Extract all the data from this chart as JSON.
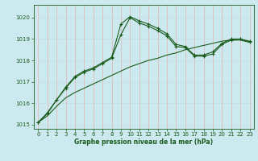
{
  "title": "Graphe pression niveau de la mer (hPa)",
  "bg_color": "#cce9f0",
  "grid_color_v": "#e8b0b0",
  "grid_color_h": "#c8dce0",
  "line_color": "#1a5c1a",
  "xlim": [
    -0.5,
    23.5
  ],
  "ylim": [
    1014.8,
    1020.6
  ],
  "yticks": [
    1015,
    1016,
    1017,
    1018,
    1019,
    1020
  ],
  "xticks": [
    0,
    1,
    2,
    3,
    4,
    5,
    6,
    7,
    8,
    9,
    10,
    11,
    12,
    13,
    14,
    15,
    16,
    17,
    18,
    19,
    20,
    21,
    22,
    23
  ],
  "series1_x": [
    0,
    1,
    2,
    3,
    4,
    5,
    6,
    7,
    8,
    9,
    10,
    11,
    12,
    13,
    14,
    15,
    16,
    17,
    18,
    19,
    20,
    21,
    22,
    23
  ],
  "series1_y": [
    1015.1,
    1015.4,
    1015.85,
    1016.25,
    1016.5,
    1016.7,
    1016.9,
    1017.1,
    1017.3,
    1017.5,
    1017.7,
    1017.85,
    1018.0,
    1018.1,
    1018.25,
    1018.35,
    1018.5,
    1018.6,
    1018.7,
    1018.8,
    1018.9,
    1018.95,
    1018.95,
    1018.85
  ],
  "series2_x": [
    0,
    1,
    2,
    3,
    4,
    5,
    6,
    7,
    8,
    9,
    10,
    11,
    12,
    13,
    14,
    15,
    16,
    17,
    18,
    19,
    20,
    21,
    22,
    23
  ],
  "series2_y": [
    1015.1,
    1015.5,
    1016.15,
    1016.7,
    1017.2,
    1017.45,
    1017.6,
    1017.85,
    1018.1,
    1019.2,
    1020.0,
    1019.75,
    1019.6,
    1019.4,
    1019.15,
    1018.65,
    1018.6,
    1018.2,
    1018.2,
    1018.3,
    1018.75,
    1018.95,
    1019.0,
    1018.85
  ],
  "series3_x": [
    0,
    1,
    2,
    3,
    4,
    5,
    6,
    7,
    8,
    9,
    10,
    11,
    12,
    13,
    14,
    15,
    16,
    17,
    18,
    19,
    20,
    21,
    22,
    23
  ],
  "series3_y": [
    1015.1,
    1015.55,
    1016.15,
    1016.75,
    1017.25,
    1017.5,
    1017.65,
    1017.9,
    1018.15,
    1019.7,
    1020.05,
    1019.85,
    1019.7,
    1019.5,
    1019.25,
    1018.75,
    1018.65,
    1018.25,
    1018.25,
    1018.4,
    1018.8,
    1019.0,
    1019.0,
    1018.9
  ]
}
